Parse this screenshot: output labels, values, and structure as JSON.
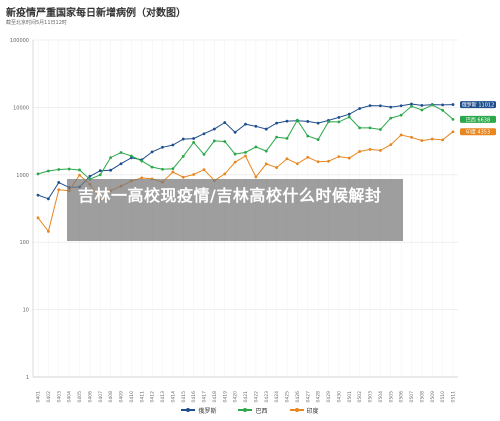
{
  "page": {
    "title": "新疫情严重国家每日新增病例（对数图）",
    "subtitle": "截至北京时间5月11日12时",
    "overlay_text": "吉林一高校现疫情/吉林高校什么时候解封"
  },
  "chart_data": {
    "type": "line",
    "yscale": "log",
    "ylim": [
      1,
      100000
    ],
    "yticks": [
      1,
      10,
      100,
      1000,
      10000,
      100000
    ],
    "ytick_labels": [
      "1",
      "10",
      "100",
      "1000",
      "10000",
      "100000"
    ],
    "grid": true,
    "legend": "bottom",
    "x": [
      "0401",
      "0402",
      "0403",
      "0404",
      "0405",
      "0406",
      "0407",
      "0408",
      "0409",
      "0410",
      "0411",
      "0412",
      "0413",
      "0414",
      "0415",
      "0416",
      "0417",
      "0418",
      "0419",
      "0420",
      "0421",
      "0422",
      "0423",
      "0424",
      "0425",
      "0426",
      "0427",
      "0428",
      "0429",
      "0430",
      "0501",
      "0502",
      "0503",
      "0504",
      "0505",
      "0506",
      "0507",
      "0508",
      "0509",
      "0510",
      "0511"
    ],
    "series": [
      {
        "name": "俄罗斯",
        "color": "#1f4e8c",
        "end_label": "俄罗斯 11012",
        "values": [
          500,
          440,
          770,
          650,
          660,
          950,
          1150,
          1170,
          1460,
          1790,
          1670,
          2190,
          2560,
          2770,
          3390,
          3450,
          4070,
          4780,
          5960,
          4270,
          5640,
          5240,
          4770,
          5850,
          6260,
          6340,
          6190,
          5840,
          6410,
          7100,
          7930,
          9620,
          10630,
          10580,
          10100,
          10560,
          11230,
          10700,
          11010,
          10900,
          11012
        ]
      },
      {
        "name": "巴西",
        "color": "#2ba84a",
        "end_label": "巴西 6638",
        "values": [
          1030,
          1140,
          1200,
          1220,
          1180,
          860,
          1000,
          1800,
          2140,
          1900,
          1600,
          1300,
          1210,
          1230,
          1880,
          3030,
          2010,
          3180,
          3120,
          2030,
          2150,
          2590,
          2250,
          3620,
          3470,
          6480,
          3760,
          3330,
          6130,
          6100,
          7190,
          4970,
          4970,
          4700,
          6930,
          7670,
          10400,
          9160,
          10860,
          9060,
          6638
        ]
      },
      {
        "name": "印度",
        "color": "#e8861f",
        "end_label": "印度 4353",
        "values": [
          230,
          145,
          600,
          580,
          990,
          720,
          430,
          580,
          680,
          810,
          900,
          870,
          780,
          1100,
          920,
          1010,
          1190,
          820,
          1030,
          1540,
          1900,
          930,
          1450,
          1280,
          1730,
          1460,
          1820,
          1560,
          1590,
          1860,
          1770,
          2220,
          2380,
          2300,
          2800,
          3900,
          3600,
          3220,
          3400,
          3300,
          4353
        ]
      }
    ]
  }
}
